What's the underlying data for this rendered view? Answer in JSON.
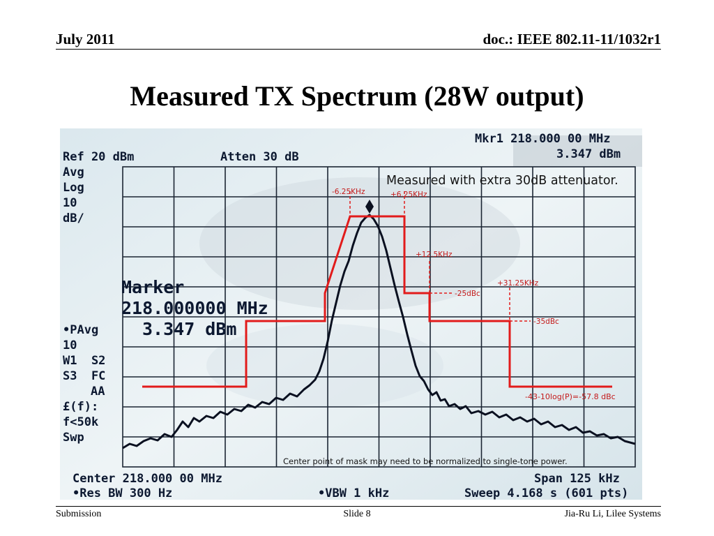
{
  "header": {
    "date": "July 2011",
    "doc": "doc.: IEEE 802.11-11/1032r1"
  },
  "title": "Measured TX Spectrum (28W output)",
  "analyzer": {
    "mkr1_label": "Mkr1 218.000 00 MHz",
    "mkr1_value": "3.347 dBm",
    "ref": "Ref 20 dBm",
    "atten": "Atten 30 dB",
    "avg": "Avg",
    "log": "Log",
    "scale_num": "10",
    "scale_unit": "dB/",
    "marker_label": "Marker",
    "marker_freq": "218.000000 MHz",
    "marker_level": "3.347 dBm",
    "side": [
      "•PAvg",
      "10",
      "W1  S2",
      "S3  FC",
      "AA",
      "£(f):",
      "f<50k",
      "Swp"
    ],
    "center": "Center 218.000 00 MHz",
    "span": "Span 125 kHz",
    "res_bw": "•Res BW 300 Hz",
    "vbw": "•VBW 1 kHz",
    "sweep": "Sweep 4.168 s (601 pts)"
  },
  "annotations": {
    "headline": "Measured with extra 30dB attenuator.",
    "minus_6_25": "-6.25KHz",
    "plus_6_25": "+6.25KHz",
    "plus_12_5": "+12.5KHz",
    "plus_31_25": "+31.25KHz",
    "level_25": "-25dBc",
    "level_35": "-35dBc",
    "level_floor": "-43-10log(P)=-57.8 dBc",
    "note": "Center point of mask may need to be normalized to single-tone power."
  },
  "footer": {
    "left": "Submission",
    "slide": "Slide 8",
    "author": "Jia-Ru Li, Lilee Systems"
  },
  "colors": {
    "mask": "#e21b1b",
    "trace": "#0a1020",
    "screen": "#e4eef2",
    "grid": "#1b2533"
  }
}
